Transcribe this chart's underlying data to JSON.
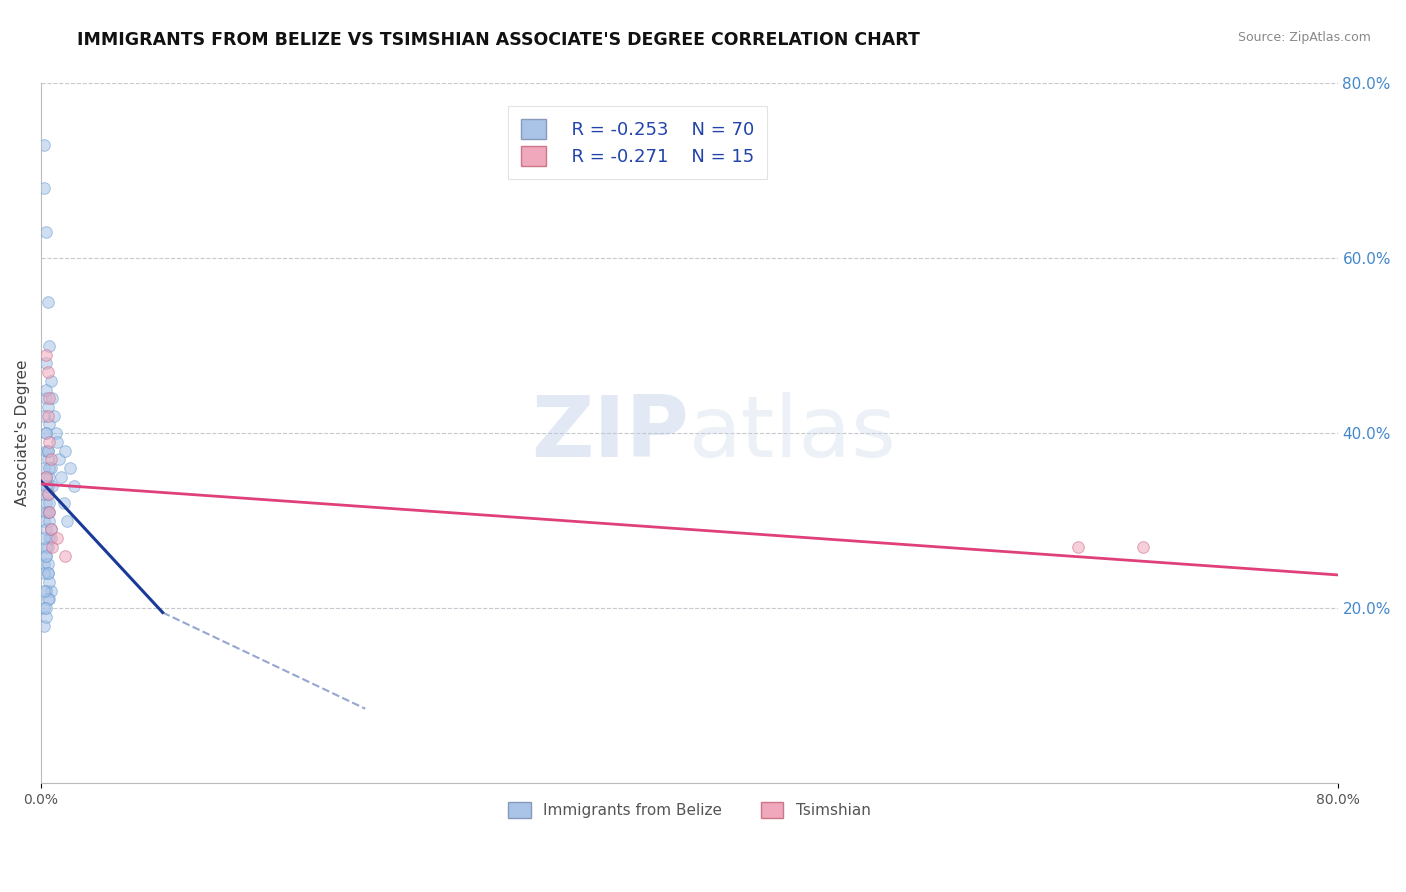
{
  "title": "IMMIGRANTS FROM BELIZE VS TSIMSHIAN ASSOCIATE'S DEGREE CORRELATION CHART",
  "source_text": "Source: ZipAtlas.com",
  "xlabel": "",
  "ylabel": "Associate's Degree",
  "xlim": [
    0.0,
    0.8
  ],
  "ylim": [
    0.0,
    0.8
  ],
  "right_y_ticks": [
    0.2,
    0.4,
    0.6,
    0.8
  ],
  "right_y_tick_labels": [
    "20.0%",
    "40.0%",
    "60.0%",
    "80.0%"
  ],
  "grid_color": "#c8c8d0",
  "background_color": "#ffffff",
  "legend_r1": "R = -0.253",
  "legend_n1": "N = 70",
  "legend_r2": "R = -0.271",
  "legend_n2": "N = 15",
  "series1_color": "#aac4e8",
  "series2_color": "#f0a8bc",
  "line1_color": "#1a3a99",
  "line2_color": "#e0407a",
  "scatter1_alpha": 0.55,
  "scatter2_alpha": 0.55,
  "scatter_size": 70,
  "blue_scatter_x": [
    0.002,
    0.002,
    0.002,
    0.002,
    0.002,
    0.003,
    0.003,
    0.003,
    0.003,
    0.003,
    0.003,
    0.004,
    0.004,
    0.004,
    0.004,
    0.004,
    0.005,
    0.005,
    0.005,
    0.005,
    0.006,
    0.006,
    0.006,
    0.007,
    0.007,
    0.008,
    0.009,
    0.01,
    0.011,
    0.012,
    0.002,
    0.003,
    0.003,
    0.004,
    0.004,
    0.005,
    0.005,
    0.003,
    0.003,
    0.004,
    0.004,
    0.005,
    0.005,
    0.006,
    0.002,
    0.003,
    0.004,
    0.005,
    0.006,
    0.003,
    0.002,
    0.003,
    0.004,
    0.002,
    0.003,
    0.015,
    0.018,
    0.02,
    0.014,
    0.016,
    0.002,
    0.003,
    0.004,
    0.005,
    0.003,
    0.002,
    0.003,
    0.004,
    0.002,
    0.003
  ],
  "blue_scatter_y": [
    0.73,
    0.68,
    0.3,
    0.25,
    0.18,
    0.63,
    0.48,
    0.44,
    0.38,
    0.32,
    0.26,
    0.55,
    0.43,
    0.37,
    0.31,
    0.24,
    0.5,
    0.41,
    0.35,
    0.28,
    0.46,
    0.36,
    0.22,
    0.44,
    0.34,
    0.42,
    0.4,
    0.39,
    0.37,
    0.35,
    0.33,
    0.31,
    0.29,
    0.27,
    0.25,
    0.23,
    0.21,
    0.45,
    0.4,
    0.38,
    0.34,
    0.32,
    0.3,
    0.28,
    0.36,
    0.35,
    0.33,
    0.31,
    0.29,
    0.27,
    0.24,
    0.22,
    0.21,
    0.2,
    0.19,
    0.38,
    0.36,
    0.34,
    0.32,
    0.3,
    0.42,
    0.4,
    0.38,
    0.36,
    0.34,
    0.28,
    0.26,
    0.24,
    0.22,
    0.2
  ],
  "pink_scatter_x": [
    0.003,
    0.004,
    0.004,
    0.005,
    0.005,
    0.006,
    0.003,
    0.004,
    0.005,
    0.006,
    0.007,
    0.01,
    0.015,
    0.64,
    0.68
  ],
  "pink_scatter_y": [
    0.49,
    0.47,
    0.42,
    0.44,
    0.39,
    0.37,
    0.35,
    0.33,
    0.31,
    0.29,
    0.27,
    0.28,
    0.26,
    0.27,
    0.27
  ],
  "line1_x_start": 0.0,
  "line1_y_start": 0.345,
  "line1_x_end": 0.075,
  "line1_y_end": 0.195,
  "line1_dash_x_end": 0.2,
  "line1_dash_y_end": 0.085,
  "line2_x_start": 0.0,
  "line2_y_start": 0.342,
  "line2_x_end": 0.8,
  "line2_y_end": 0.238
}
